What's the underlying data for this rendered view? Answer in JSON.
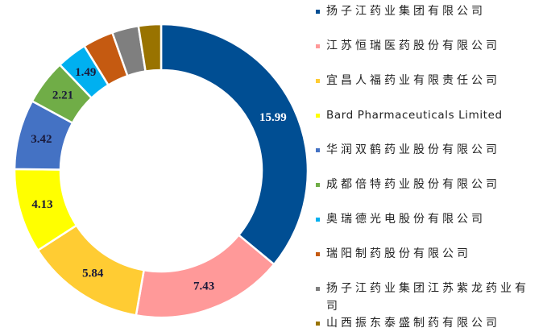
{
  "chart_data": {
    "type": "donut",
    "categories": [
      "扬子江药业集团有限公司",
      "江苏恒瑞医药股份有限公司",
      "宜昌人福药业有限责任公司",
      "Bard Pharmaceuticals Limited",
      "华润双鹤药业股份有限公司",
      "成都倍特药业股份有限公司",
      "奥瑞德光电股份有限公司",
      "瑞阳制药股份有限公司",
      "扬子江药业集团江苏紫龙药业有司",
      "山西振东泰盛制药有限公司"
    ],
    "values": [
      15.99,
      7.43,
      5.84,
      4.13,
      3.42,
      2.21,
      1.49,
      1.5,
      1.3,
      1.1
    ],
    "value_labels": [
      "15.99",
      "7.43",
      "5.84",
      "4.13",
      "3.42",
      "2.21",
      "1.49",
      null,
      null,
      null
    ],
    "colors": [
      "#004e93",
      "#ff9999",
      "#ffcc33",
      "#ffff00",
      "#4472c4",
      "#70ad47",
      "#00b0f0",
      "#c55a11",
      "#7f7f7f",
      "#997300"
    ],
    "legend": "right"
  }
}
